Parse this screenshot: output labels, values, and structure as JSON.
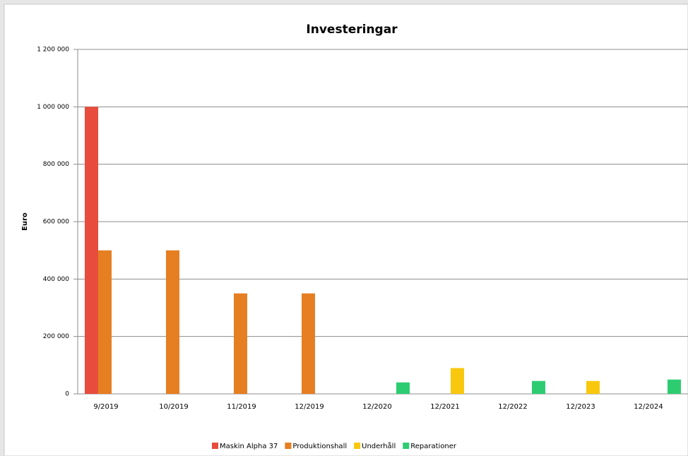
{
  "chart_data": {
    "type": "bar",
    "title": "Investeringar",
    "y_label": "Euro",
    "categories": [
      "9/2019",
      "10/2019",
      "11/2019",
      "12/2019",
      "12/2020",
      "12/2021",
      "12/2022",
      "12/2023",
      "12/2024"
    ],
    "series": [
      {
        "name": "Maskin Alpha 37",
        "color": "#e84c3d",
        "values": [
          1000000,
          0,
          0,
          0,
          0,
          0,
          0,
          0,
          0
        ]
      },
      {
        "name": "Produktionshall",
        "color": "#e67e22",
        "values": [
          500000,
          500000,
          350000,
          350000,
          0,
          0,
          0,
          0,
          0
        ]
      },
      {
        "name": "Underhåll",
        "color": "#f9c80e",
        "values": [
          0,
          0,
          0,
          0,
          0,
          90000,
          0,
          45000,
          0
        ]
      },
      {
        "name": "Reparationer",
        "color": "#2ecc71",
        "values": [
          0,
          0,
          0,
          0,
          40000,
          0,
          45000,
          0,
          50000
        ]
      }
    ],
    "ylim": [
      0,
      1200000
    ],
    "yticks": [
      0,
      {
        "value": 200000,
        "label": "200 000"
      },
      {
        "value": 400000,
        "label": "400 000"
      },
      {
        "value": 600000,
        "label": "600 000"
      },
      {
        "value": 800000,
        "label": "800 000"
      },
      {
        "value": 1000000,
        "label": "1 000 000"
      },
      {
        "value": 1200000,
        "label": "1 200 000"
      }
    ],
    "grid": true,
    "legend": "bottom"
  }
}
